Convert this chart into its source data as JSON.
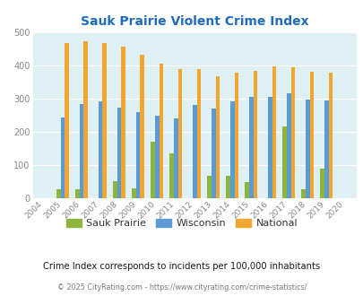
{
  "title": "Sauk Prairie Violent Crime Index",
  "subtitle": "Crime Index corresponds to incidents per 100,000 inhabitants",
  "footer": "© 2025 CityRating.com - https://www.cityrating.com/crime-statistics/",
  "years": [
    2004,
    2005,
    2006,
    2007,
    2008,
    2009,
    2010,
    2011,
    2012,
    2013,
    2014,
    2015,
    2016,
    2017,
    2018,
    2019,
    2020
  ],
  "sauk_prairie": [
    0,
    27,
    28,
    0,
    53,
    30,
    170,
    135,
    0,
    68,
    68,
    48,
    0,
    218,
    27,
    90,
    0
  ],
  "wisconsin": [
    0,
    245,
    285,
    293,
    274,
    260,
    250,
    241,
    281,
    271,
    293,
    306,
    306,
    317,
    298,
    294,
    0
  ],
  "national": [
    0,
    469,
    474,
    467,
    457,
    432,
    405,
    389,
    389,
    368,
    379,
    384,
    399,
    395,
    381,
    380,
    0
  ],
  "sauk_color": "#8db53c",
  "wisconsin_color": "#5b9bd5",
  "national_color": "#f0a630",
  "bg_color": "#dff0f5",
  "title_color": "#1f6bbf",
  "subtitle_color": "#1a1a1a",
  "footer_color": "#7a7a7a",
  "legend_text_color": "#333333",
  "ylim": [
    0,
    500
  ],
  "yticks": [
    0,
    100,
    200,
    300,
    400,
    500
  ],
  "bar_width": 0.22,
  "figsize": [
    4.06,
    3.3
  ],
  "dpi": 100
}
